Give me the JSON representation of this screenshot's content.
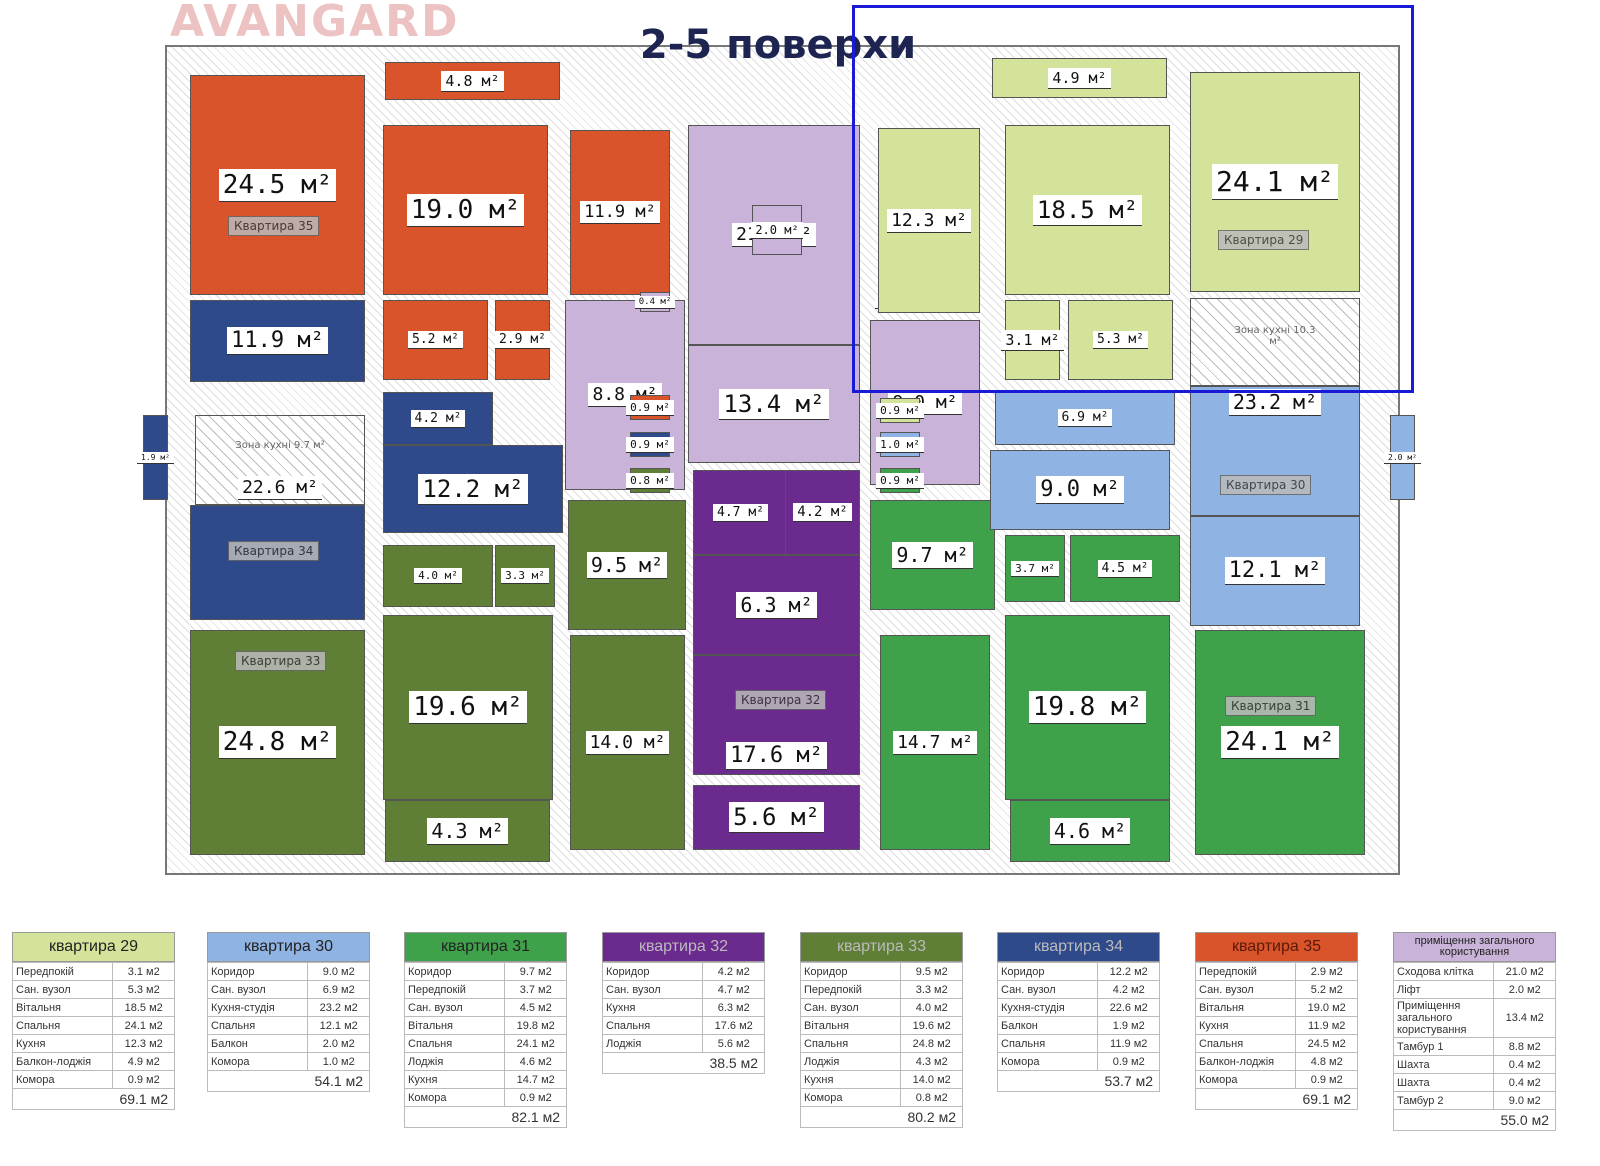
{
  "title": "2-5 поверхи",
  "watermark": "AVANGARD",
  "colors": {
    "29": "#d3e39a",
    "30": "#8fb3e3",
    "31": "#3fa24b",
    "32": "#6b2b8e",
    "33": "#5f7e36",
    "34": "#2f4a8a",
    "35": "#d9532b",
    "common": "#c9b3d8"
  },
  "rooms": [
    {
      "area": "24.5 м²",
      "apt": "35"
    },
    {
      "area": "19.0 м²",
      "apt": "35"
    },
    {
      "area": "11.9 м²",
      "apt": "35"
    },
    {
      "area": "4.8 м²",
      "apt": "35"
    },
    {
      "area": "5.2 м²",
      "apt": "35"
    },
    {
      "area": "2.9 м²",
      "apt": "35"
    },
    {
      "area": "11.9 м²",
      "apt": "34"
    },
    {
      "area": "22.6 м²",
      "apt": "34"
    },
    {
      "area": "",
      "apt": "34"
    },
    {
      "area": "12.2 м²",
      "apt": "34"
    },
    {
      "area": "4.2 м²",
      "apt": "34"
    },
    {
      "area": "1.9 м²",
      "apt": "34"
    },
    {
      "area": "21.0 м²",
      "apt": "common"
    },
    {
      "area": "2.0 м²",
      "apt": "common"
    },
    {
      "area": "13.4 м²",
      "apt": "common"
    },
    {
      "area": "8.8 м²",
      "apt": "common"
    },
    {
      "area": "9.0 м²",
      "apt": "common"
    },
    {
      "area": "0.4 м²",
      "apt": "common"
    },
    {
      "area": "0.4 м²",
      "apt": "common"
    },
    {
      "area": "0.9 м²",
      "apt": "35"
    },
    {
      "area": "0.9 м²",
      "apt": "34"
    },
    {
      "area": "0.8 м²",
      "apt": "33"
    },
    {
      "area": "0.9 м²",
      "apt": "29"
    },
    {
      "area": "1.0 м²",
      "apt": "30"
    },
    {
      "area": "0.9 м²",
      "apt": "31"
    },
    {
      "area": "9.5 м²",
      "apt": "33"
    },
    {
      "area": "4.0 м²",
      "apt": "33"
    },
    {
      "area": "3.3 м²",
      "apt": "33"
    },
    {
      "area": "19.6 м²",
      "apt": "33"
    },
    {
      "area": "14.0 м²",
      "apt": "33"
    },
    {
      "area": "24.8 м²",
      "apt": "33"
    },
    {
      "area": "4.3 м²",
      "apt": "33"
    },
    {
      "area": "4.7 м²",
      "apt": "32"
    },
    {
      "area": "4.2 м²",
      "apt": "32"
    },
    {
      "area": "6.3 м²",
      "apt": "32"
    },
    {
      "area": "17.6 м²",
      "apt": "32"
    },
    {
      "area": "5.6 м²",
      "apt": "32"
    },
    {
      "area": "9.7 м²",
      "apt": "31"
    },
    {
      "area": "3.7 м²",
      "apt": "31"
    },
    {
      "area": "4.5 м²",
      "apt": "31"
    },
    {
      "area": "14.7 м²",
      "apt": "31"
    },
    {
      "area": "19.8 м²",
      "apt": "31"
    },
    {
      "area": "24.1 м²",
      "apt": "31"
    },
    {
      "area": "4.6 м²",
      "apt": "31"
    },
    {
      "area": "6.9 м²",
      "apt": "30"
    },
    {
      "area": "9.0 м²",
      "apt": "30"
    },
    {
      "area": "",
      "apt": "30"
    },
    {
      "area": "23.2 м²",
      "apt": "30"
    },
    {
      "area": "12.1 м²",
      "apt": "30"
    },
    {
      "area": "2.0 м²",
      "apt": "30"
    },
    {
      "area": "12.3 м²",
      "apt": "29"
    },
    {
      "area": "18.5 м²",
      "apt": "29"
    },
    {
      "area": "24.1 м²",
      "apt": "29"
    },
    {
      "area": "4.9 м²",
      "apt": "29"
    },
    {
      "area": "3.1 м²",
      "apt": "29"
    },
    {
      "area": "5.3 м²",
      "apt": "29"
    }
  ],
  "kitchen_zones": [
    "Зона кухні 9.7 м²",
    "Зона кухні 10.3 м²"
  ],
  "apartment_tags": [
    "Квартира 35",
    "Квартира 34",
    "Квартира 33",
    "Квартира 32",
    "Квартира 31",
    "Квартира 30",
    "Квартира 29"
  ],
  "legend": [
    {
      "title": "квартира 29",
      "apt": "29",
      "rows": [
        [
          "Передпокій",
          "3.1 м2"
        ],
        [
          "Сан. вузол",
          "5.3 м2"
        ],
        [
          "Вітальня",
          "18.5 м2"
        ],
        [
          "Спальня",
          "24.1 м2"
        ],
        [
          "Кухня",
          "12.3 м2"
        ],
        [
          "Балкон-лоджія",
          "4.9 м2"
        ],
        [
          "Комора",
          "0.9 м2"
        ]
      ],
      "total": "69.1 м2"
    },
    {
      "title": "квартира 30",
      "apt": "30",
      "rows": [
        [
          "Коридор",
          "9.0 м2"
        ],
        [
          "Сан. вузол",
          "6.9 м2"
        ],
        [
          "Кухня-студія",
          "23.2 м2"
        ],
        [
          "Спальня",
          "12.1 м2"
        ],
        [
          "Балкон",
          "2.0 м2"
        ],
        [
          "Комора",
          "1.0 м2"
        ]
      ],
      "total": "54.1 м2"
    },
    {
      "title": "квартира 31",
      "apt": "31",
      "rows": [
        [
          "Коридор",
          "9.7 м2"
        ],
        [
          "Передпокій",
          "3.7 м2"
        ],
        [
          "Сан. вузол",
          "4.5 м2"
        ],
        [
          "Вітальня",
          "19.8 м2"
        ],
        [
          "Спальня",
          "24.1 м2"
        ],
        [
          "Лоджія",
          "4.6 м2"
        ],
        [
          "Кухня",
          "14.7 м2"
        ],
        [
          "Комора",
          "0.9 м2"
        ]
      ],
      "total": "82.1 м2"
    },
    {
      "title": "квартира 32",
      "apt": "32",
      "rows": [
        [
          "Коридор",
          "4.2 м2"
        ],
        [
          "Сан. вузол",
          "4.7 м2"
        ],
        [
          "Кухня",
          "6.3 м2"
        ],
        [
          "Спальня",
          "17.6 м2"
        ],
        [
          "Лоджія",
          "5.6 м2"
        ]
      ],
      "total": "38.5 м2"
    },
    {
      "title": "квартира 33",
      "apt": "33",
      "rows": [
        [
          "Коридор",
          "9.5 м2"
        ],
        [
          "Передпокій",
          "3.3 м2"
        ],
        [
          "Сан. вузол",
          "4.0 м2"
        ],
        [
          "Вітальня",
          "19.6 м2"
        ],
        [
          "Спальня",
          "24.8 м2"
        ],
        [
          "Лоджія",
          "4.3 м2"
        ],
        [
          "Кухня",
          "14.0 м2"
        ],
        [
          "Комора",
          "0.8 м2"
        ]
      ],
      "total": "80.2 м2"
    },
    {
      "title": "квартира 34",
      "apt": "34",
      "rows": [
        [
          "Коридор",
          "12.2 м2"
        ],
        [
          "Сан. вузол",
          "4.2 м2"
        ],
        [
          "Кухня-студія",
          "22.6 м2"
        ],
        [
          "Балкон",
          "1.9 м2"
        ],
        [
          "Спальня",
          "11.9 м2"
        ],
        [
          "Комора",
          "0.9 м2"
        ]
      ],
      "total": "53.7 м2"
    },
    {
      "title": "квартира 35",
      "apt": "35",
      "rows": [
        [
          "Передпокій",
          "2.9 м2"
        ],
        [
          "Сан. вузол",
          "5.2 м2"
        ],
        [
          "Вітальня",
          "19.0 м2"
        ],
        [
          "Кухня",
          "11.9 м2"
        ],
        [
          "Спальня",
          "24.5 м2"
        ],
        [
          "Балкон-лоджія",
          "4.8 м2"
        ],
        [
          "Комора",
          "0.9 м2"
        ]
      ],
      "total": "69.1 м2"
    },
    {
      "title": "приміщення загального користування",
      "apt": "common",
      "rows": [
        [
          "Сходова клітка",
          "21.0 м2"
        ],
        [
          "Ліфт",
          "2.0 м2"
        ],
        [
          "Приміщення загального користування",
          "13.4 м2"
        ],
        [
          "Тамбур 1",
          "8.8 м2"
        ],
        [
          "Шахта",
          "0.4 м2"
        ],
        [
          "Шахта",
          "0.4 м2"
        ],
        [
          "Тамбур 2",
          "9.0 м2"
        ]
      ],
      "total": "55.0 м2"
    }
  ]
}
